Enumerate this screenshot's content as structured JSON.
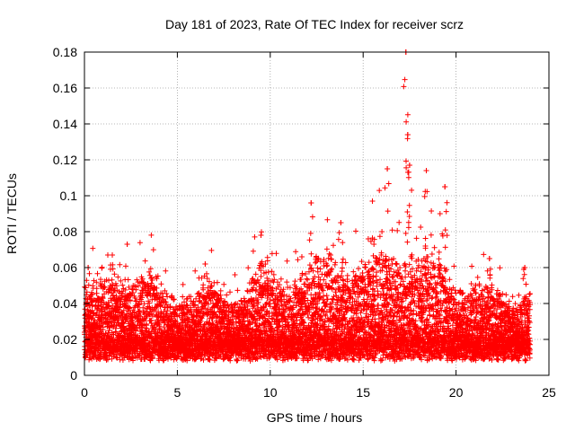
{
  "chart_data": {
    "type": "scatter",
    "title": "Day 181 of 2023, Rate Of TEC Index for receiver scrz",
    "xlabel": "GPS time / hours",
    "ylabel": "ROTI / TECUs",
    "xlim": [
      0,
      25
    ],
    "ylim": [
      0,
      0.18
    ],
    "x_ticks": [
      0,
      5,
      10,
      15,
      20,
      25
    ],
    "x_tick_labels": [
      "0",
      "5",
      "10",
      "15",
      "20",
      "25"
    ],
    "y_ticks": [
      0,
      0.02,
      0.04,
      0.06,
      0.08,
      0.1,
      0.12,
      0.14,
      0.16,
      0.18
    ],
    "y_tick_labels": [
      "0",
      "0.02",
      "0.04",
      "0.06",
      "0.08",
      "0.1",
      "0.12",
      "0.14",
      "0.16",
      "0.18"
    ],
    "grid": true,
    "marker": "+",
    "color": "#ff0000",
    "series": [
      {
        "name": "ROTI",
        "points_description": "dense band of ROTI values between about 0.005 and 0.03 TECU/s from 0 to 24 h, with spikes up to ~0.06-0.075 around 1.5-3 h and ~0.06-0.078 near 9.5 h, increasing activity from ~11 to 20 h with peaks near 12.2 h (~0.096), 16.5-17.5 h (up to ~0.18) and 19-19.5 h (~0.105), decreasing after 20 h to ~0.06 max",
        "peaks": [
          {
            "x": 0.2,
            "y": 0.06
          },
          {
            "x": 1.5,
            "y": 0.067
          },
          {
            "x": 2.3,
            "y": 0.073
          },
          {
            "x": 6.5,
            "y": 0.062
          },
          {
            "x": 9.5,
            "y": 0.078
          },
          {
            "x": 11.7,
            "y": 0.066
          },
          {
            "x": 12.2,
            "y": 0.096
          },
          {
            "x": 13.8,
            "y": 0.085
          },
          {
            "x": 15.5,
            "y": 0.097
          },
          {
            "x": 16.3,
            "y": 0.115
          },
          {
            "x": 17.3,
            "y": 0.18
          },
          {
            "x": 17.4,
            "y": 0.134
          },
          {
            "x": 17.5,
            "y": 0.117
          },
          {
            "x": 18.4,
            "y": 0.114
          },
          {
            "x": 19.4,
            "y": 0.105
          },
          {
            "x": 21.8,
            "y": 0.065
          },
          {
            "x": 23.7,
            "y": 0.06
          }
        ]
      }
    ]
  }
}
